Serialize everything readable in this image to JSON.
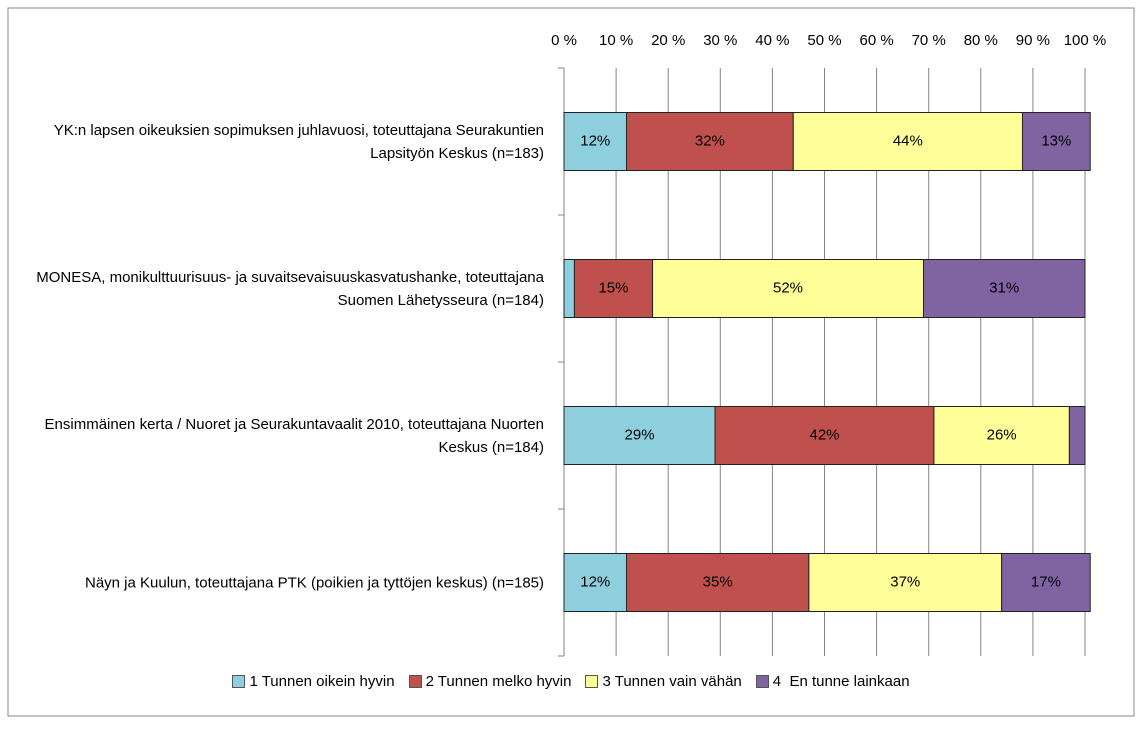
{
  "chart_data": {
    "type": "stacked_bar_horizontal",
    "categories": [
      "YK:n lapsen oikeuksien sopimuksen juhlavuosi, toteuttajana Seurakuntien Lapsityön Keskus (n=183)",
      "MONESA, monikulttuurisuus- ja suvaitsevaisuuskasvatushanke, toteuttajana Suomen Lähetysseura (n=184)",
      "Ensimmäinen kerta / Nuoret ja Seurakuntavaalit 2010, toteuttajana Nuorten Keskus (n=184)",
      "Näyn ja Kuulun, toteuttajana PTK (poikien ja tyttöjen keskus) (n=185)"
    ],
    "series": [
      {
        "name": "1 Tunnen oikein hyvin",
        "color": "#8ecfdd",
        "values": [
          12,
          2,
          29,
          12
        ],
        "value_labels": [
          "12%",
          null,
          "29%",
          "12%"
        ]
      },
      {
        "name": "2 Tunnen melko hyvin",
        "color": "#c0504d",
        "values": [
          32,
          15,
          42,
          35
        ],
        "value_labels": [
          "32%",
          "15%",
          "42%",
          "35%"
        ]
      },
      {
        "name": "3 Tunnen vain vähän",
        "color": "#ffff99",
        "values": [
          44,
          52,
          26,
          37
        ],
        "value_labels": [
          "44%",
          "52%",
          "26%",
          "37%"
        ]
      },
      {
        "name": "4  En tunne lainkaan",
        "color": "#8064a2",
        "values": [
          13,
          31,
          3,
          17
        ],
        "value_labels": [
          "13%",
          "31%",
          null,
          "17%"
        ]
      }
    ],
    "xlim": [
      0,
      100
    ],
    "xticks": [
      {
        "value": 0,
        "label": "0 %"
      },
      {
        "value": 10,
        "label": "10 %"
      },
      {
        "value": 20,
        "label": "20 %"
      },
      {
        "value": 30,
        "label": "30 %"
      },
      {
        "value": 40,
        "label": "40 %"
      },
      {
        "value": 50,
        "label": "50 %"
      },
      {
        "value": 60,
        "label": "60 %"
      },
      {
        "value": 70,
        "label": "70 %"
      },
      {
        "value": 80,
        "label": "80 %"
      },
      {
        "value": 90,
        "label": "90 %"
      },
      {
        "value": 100,
        "label": "100 %"
      }
    ],
    "grid": true,
    "legend": "bottom"
  }
}
